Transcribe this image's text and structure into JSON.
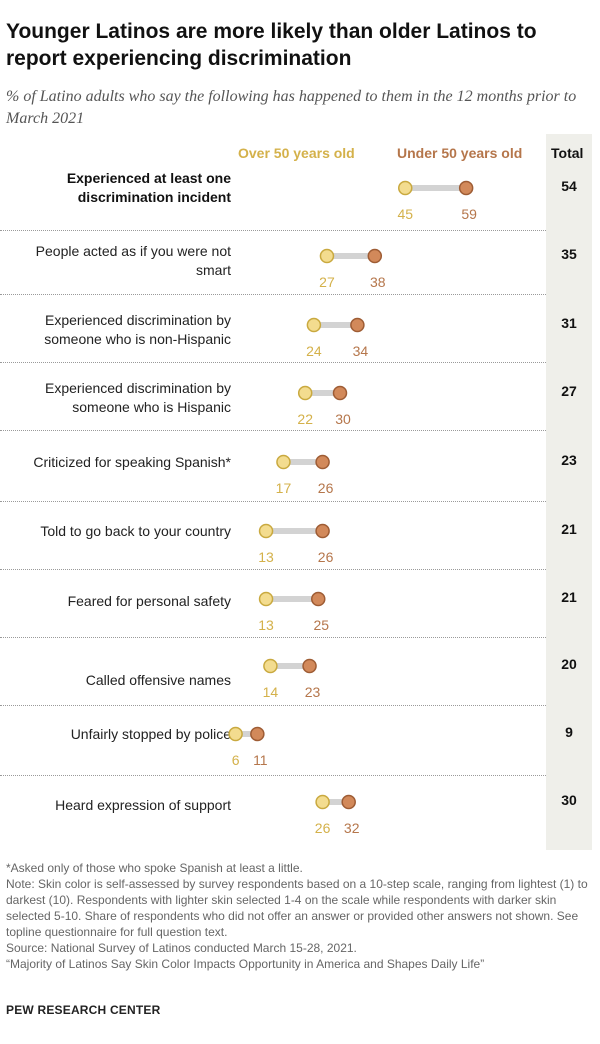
{
  "title": "Younger Latinos are more likely than older Latinos to report experiencing discrimination",
  "subtitle": "% of Latino adults who say the following has happened to them in the 12 months prior to March 2021",
  "legend": {
    "over": "Over 50 years old",
    "under": "Under 50 years old",
    "total": "Total"
  },
  "colors": {
    "over_fill": "#f3dc8f",
    "over_stroke": "#c9a93f",
    "over_text": "#d4b14a",
    "under_fill": "#d2895a",
    "under_stroke": "#9e5c34",
    "under_text": "#b5764b",
    "connector": "#d3d3d3"
  },
  "chart_data": {
    "type": "dot",
    "series": [
      {
        "name": "Over 50 years old",
        "key": "over"
      },
      {
        "name": "Under 50 years old",
        "key": "under"
      },
      {
        "name": "Total",
        "key": "total"
      }
    ],
    "items": [
      {
        "label": "Experienced at least one discrimination incident",
        "over": 45,
        "under": 59,
        "total": 54,
        "bold": true
      },
      {
        "label": "People acted as if you were not smart",
        "over": 27,
        "under": 38,
        "total": 35
      },
      {
        "label": "Experienced discrimination by someone who is non-Hispanic",
        "over": 24,
        "under": 34,
        "total": 31
      },
      {
        "label": "Experienced discrimination by someone who is Hispanic",
        "over": 22,
        "under": 30,
        "total": 27
      },
      {
        "label": "Criticized for speaking Spanish*",
        "over": 17,
        "under": 26,
        "total": 23
      },
      {
        "label": "Told to go back to your country",
        "over": 13,
        "under": 26,
        "total": 21
      },
      {
        "label": "Feared for personal safety",
        "over": 13,
        "under": 25,
        "total": 21
      },
      {
        "label": "Called offensive names",
        "over": 14,
        "under": 23,
        "total": 20
      },
      {
        "label": "Unfairly stopped by police",
        "over": 6,
        "under": 11,
        "total": 9
      },
      {
        "label": "Heard expression of support",
        "over": 26,
        "under": 32,
        "total": 30
      }
    ]
  },
  "notes": [
    "*Asked only of those who spoke Spanish at least a little.",
    "Note: Skin color is self-assessed by survey respondents based on a 10-step scale, ranging from lightest (1) to darkest (10). Respondents with lighter skin selected 1-4 on the scale while respondents with darker skin selected 5-10. Share of respondents who did not offer an answer or provided other answers not shown. See topline questionnaire for full question text.",
    "Source: National Survey of Latinos conducted March 15-28, 2021.",
    "“Majority of Latinos Say Skin Color Impacts Opportunity in America and Shapes Daily Life”"
  ],
  "footer": "PEW RESEARCH CENTER"
}
